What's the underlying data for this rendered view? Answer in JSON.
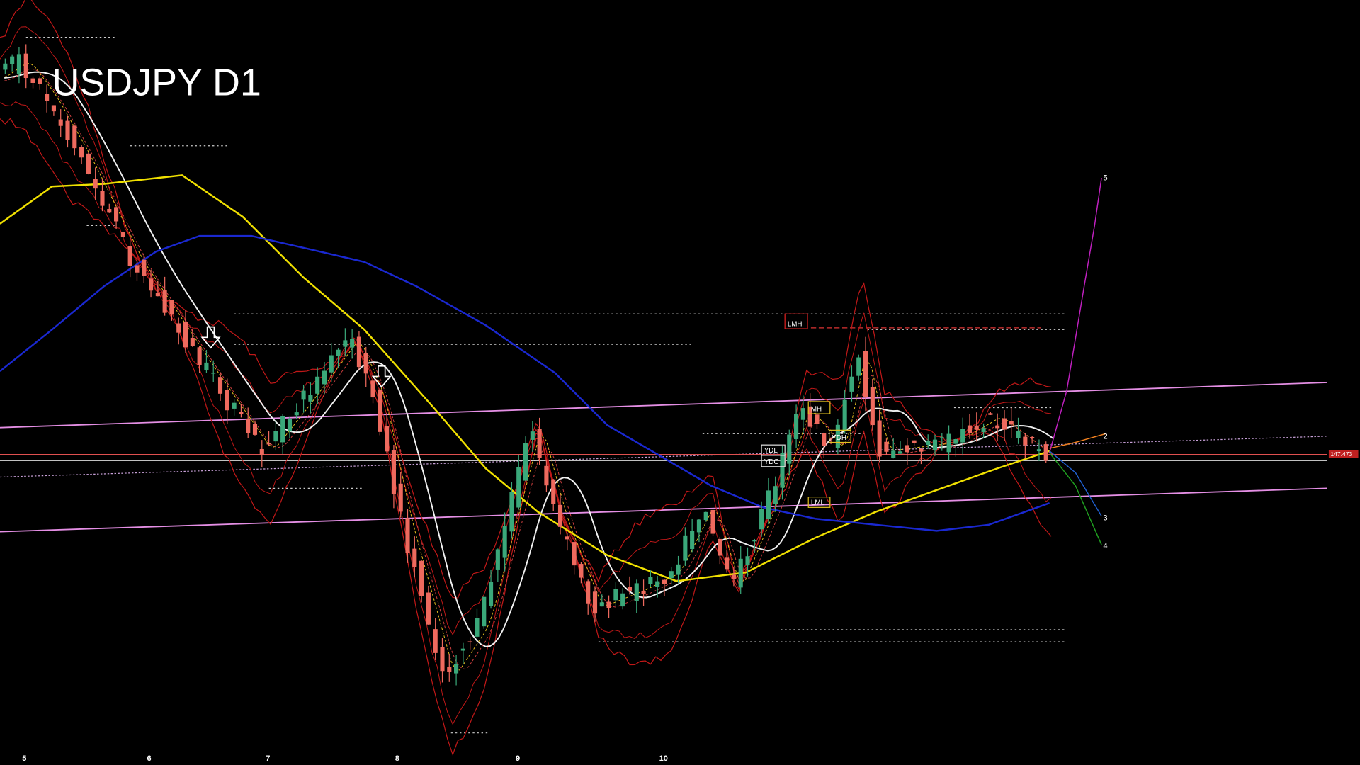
{
  "title": "USDJPY D1",
  "x_labels": [
    "5",
    "6",
    "7",
    "8",
    "9",
    "10"
  ],
  "projection_labels": [
    "5",
    "2",
    "3",
    "4"
  ],
  "price_label": "147.473",
  "level_labels": [
    "LMH",
    "YDL",
    "YDC",
    "LML",
    "MH",
    "YDH"
  ]
}
